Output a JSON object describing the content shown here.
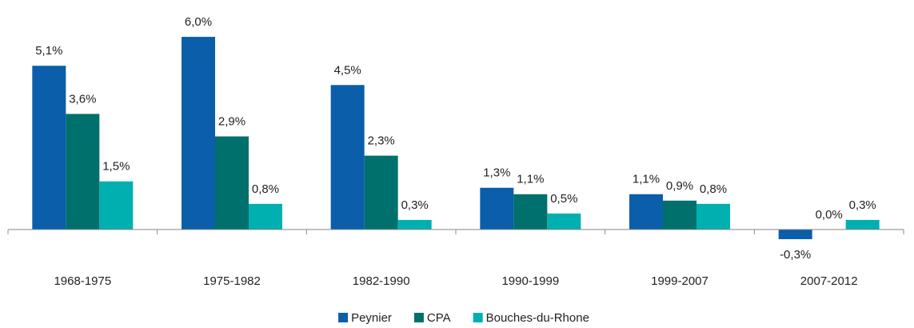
{
  "chart_data": {
    "type": "bar",
    "categories": [
      "1968-1975",
      "1975-1982",
      "1982-1990",
      "1990-1999",
      "1999-2007",
      "2007-2012"
    ],
    "series": [
      {
        "name": "Peynier",
        "color": "#0a5eaa",
        "values": [
          5.1,
          6.0,
          4.5,
          1.3,
          1.1,
          -0.3
        ],
        "value_labels": [
          "5,1%",
          "6,0%",
          "4,5%",
          "1,3%",
          "1,1%",
          "-0,3%"
        ]
      },
      {
        "name": "CPA",
        "color": "#00706c",
        "values": [
          3.6,
          2.9,
          2.3,
          1.1,
          0.9,
          0.0
        ],
        "value_labels": [
          "3,6%",
          "2,9%",
          "2,3%",
          "1,1%",
          "0,9%",
          "0,0%"
        ]
      },
      {
        "name": "Bouches-du-Rhone",
        "color": "#00b0b0",
        "values": [
          1.5,
          0.8,
          0.3,
          0.5,
          0.8,
          0.3
        ],
        "value_labels": [
          "1,5%",
          "0,8%",
          "0,3%",
          "0,5%",
          "0,8%",
          "0,3%"
        ]
      }
    ],
    "ylim": [
      -0.6,
      6.5
    ],
    "legend": "bottom"
  }
}
